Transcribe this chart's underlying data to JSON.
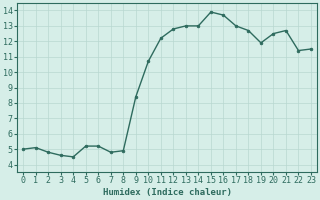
{
  "x": [
    0,
    1,
    2,
    3,
    4,
    5,
    6,
    7,
    8,
    9,
    10,
    11,
    12,
    13,
    14,
    15,
    16,
    17,
    18,
    19,
    20,
    21,
    22,
    23
  ],
  "y": [
    5.0,
    5.1,
    4.8,
    4.6,
    4.5,
    5.2,
    5.2,
    4.8,
    4.9,
    8.4,
    10.7,
    12.2,
    12.8,
    13.0,
    13.0,
    13.9,
    13.7,
    13.0,
    12.7,
    11.9,
    12.5,
    12.7,
    11.4,
    11.5
  ],
  "line_color": "#2E6B5E",
  "marker": "o",
  "markersize": 2.0,
  "linewidth": 1.0,
  "xlabel": "Humidex (Indice chaleur)",
  "xlim": [
    -0.5,
    23.5
  ],
  "ylim": [
    3.5,
    14.5
  ],
  "yticks": [
    4,
    5,
    6,
    7,
    8,
    9,
    10,
    11,
    12,
    13,
    14
  ],
  "xticks": [
    0,
    1,
    2,
    3,
    4,
    5,
    6,
    7,
    8,
    9,
    10,
    11,
    12,
    13,
    14,
    15,
    16,
    17,
    18,
    19,
    20,
    21,
    22,
    23
  ],
  "background_color": "#D6EEE8",
  "grid_color": "#B8D8D0",
  "xlabel_fontsize": 6.5,
  "tick_fontsize": 6.0,
  "spine_color": "#2E6B5E"
}
